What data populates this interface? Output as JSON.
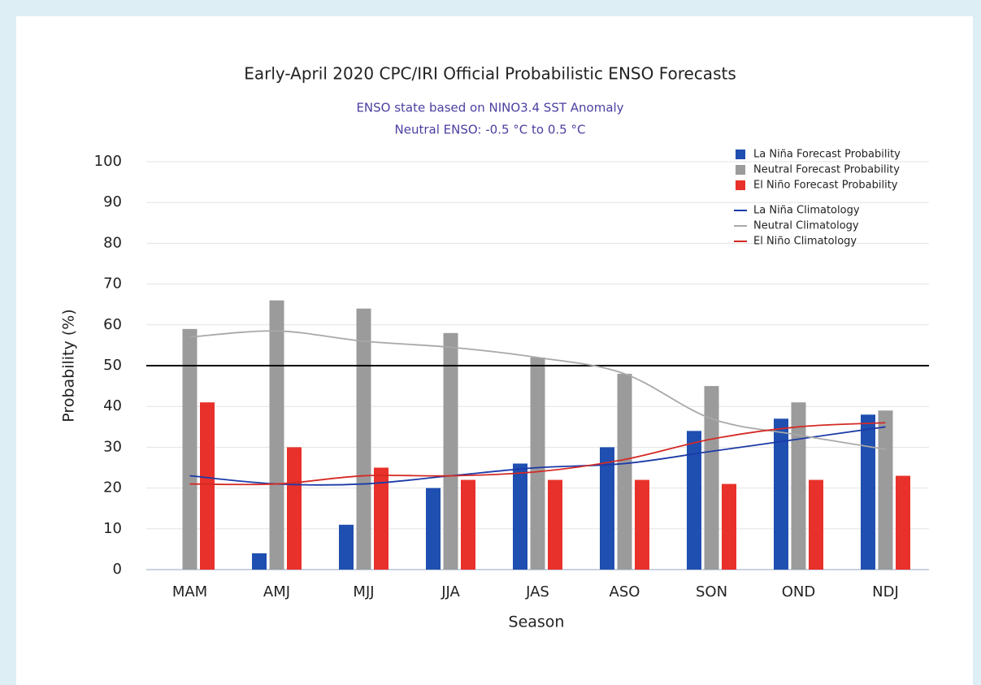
{
  "chart_data": {
    "type": "bar",
    "title": "Early-April 2020 CPC/IRI Official Probabilistic ENSO Forecasts",
    "subtitle": [
      "ENSO state based on NINO3.4 SST Anomaly",
      "Neutral ENSO: -0.5 °C to 0.5 °C"
    ],
    "x_label": "Season",
    "y_label": "Probability (%)",
    "categories": [
      "MAM",
      "AMJ",
      "MJJ",
      "JJA",
      "JAS",
      "ASO",
      "SON",
      "OND",
      "NDJ"
    ],
    "series": [
      {
        "name": "La Niña Forecast Probability",
        "type": "bar",
        "color": "#1f4fb0",
        "values": [
          0,
          4,
          11,
          20,
          26,
          30,
          34,
          37,
          38
        ]
      },
      {
        "name": "Neutral Forecast Probability",
        "type": "bar",
        "color": "#9b9b9b",
        "values": [
          59,
          66,
          64,
          58,
          52,
          48,
          45,
          41,
          39
        ]
      },
      {
        "name": "El Niño Forecast Probability",
        "type": "bar",
        "color": "#e8312a",
        "values": [
          41,
          30,
          25,
          22,
          22,
          22,
          21,
          22,
          23
        ]
      },
      {
        "name": "La Niña Climatology",
        "type": "line",
        "color": "#1c3aa8",
        "values": [
          23,
          21,
          21,
          23,
          25,
          26,
          29,
          32,
          35
        ]
      },
      {
        "name": "Neutral Climatology",
        "type": "line",
        "color": "#a8a8a8",
        "values": [
          57,
          58.5,
          56,
          54.5,
          52,
          48,
          37,
          33,
          29.5
        ]
      },
      {
        "name": "El Niño Climatology",
        "type": "line",
        "color": "#d42a25",
        "values": [
          21,
          21,
          23,
          23,
          24,
          27,
          32,
          35,
          36
        ]
      }
    ],
    "threshold": 50,
    "ylim": [
      0,
      100
    ],
    "yticks": [
      0,
      10,
      20,
      30,
      40,
      50,
      60,
      70,
      80,
      90,
      100
    ],
    "grid": true,
    "legend": "top-right"
  }
}
